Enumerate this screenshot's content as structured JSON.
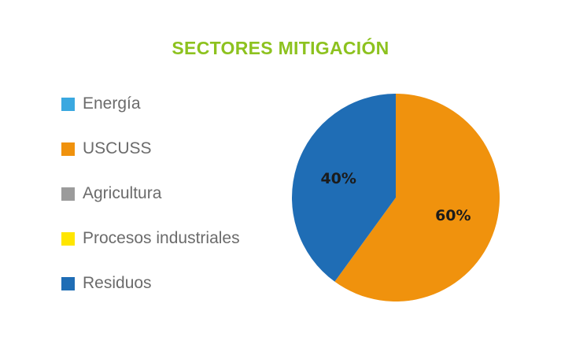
{
  "chart_data": {
    "type": "pie",
    "title": "SECTORES MITIGACIÓN",
    "categories": [
      "Energía",
      "USCUSS",
      "Agricultura",
      "Procesos industriales",
      "Residuos"
    ],
    "values": [
      0,
      60,
      0,
      0,
      40
    ],
    "value_labels": [
      "",
      "60%",
      "",
      "",
      "40%"
    ],
    "colors": [
      "#3aa8e0",
      "#f0920d",
      "#9b9b9b",
      "#ffe600",
      "#1f6db5"
    ],
    "legend_position": "left"
  },
  "style": {
    "title_color": "#8dc21f"
  }
}
